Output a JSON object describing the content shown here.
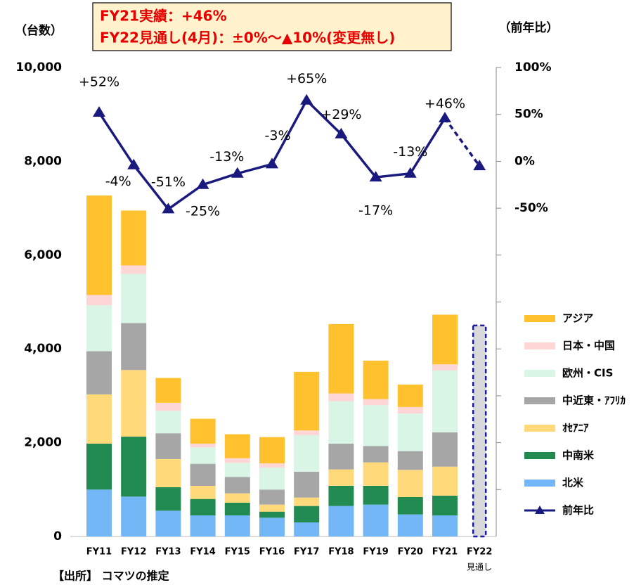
{
  "chart_data": {
    "type": "bar_line",
    "annotation": [
      "FY21実績：+46%",
      "FY22見通し(4月)：±0%～▲10%(変更無し)"
    ],
    "y_label": "（台数）",
    "y2_label": "（前年比）",
    "source": "【出所】 コマツの推定",
    "forecast_note": "見通し",
    "categories": [
      "FY11",
      "FY12",
      "FY13",
      "FY14",
      "FY15",
      "FY16",
      "FY17",
      "FY18",
      "FY19",
      "FY20",
      "FY21",
      "FY22"
    ],
    "ylim": [
      0,
      10000
    ],
    "yticks": [
      0,
      {
        "value": 2000,
        "label": "2,000"
      },
      {
        "value": 4000,
        "label": "4,000"
      },
      {
        "value": 6000,
        "label": "6,000"
      },
      {
        "value": 8000,
        "label": "8,000"
      },
      {
        "value": 10000,
        "label": "10,000"
      }
    ],
    "y2lim": [
      -400,
      100
    ],
    "y2ticks": [
      {
        "value": -50,
        "label": "-50%"
      },
      {
        "value": 0,
        "label": "0%"
      },
      {
        "value": 50,
        "label": "50%"
      },
      {
        "value": 100,
        "label": "100%"
      }
    ],
    "y2_minor_ticks": [
      -350,
      -300,
      -250,
      -200,
      -150,
      -100
    ],
    "series": [
      {
        "name": "北米",
        "color": "#74b7f7",
        "values": [
          1000,
          850,
          550,
          450,
          450,
          400,
          300,
          650,
          680,
          470,
          450,
          null
        ]
      },
      {
        "name": "中南米",
        "color": "#218b52",
        "values": [
          980,
          1280,
          500,
          350,
          270,
          130,
          350,
          430,
          400,
          370,
          420,
          null
        ]
      },
      {
        "name": "ｵｾｱﾆｱ",
        "color": "#ffd97a",
        "values": [
          1050,
          1420,
          600,
          280,
          200,
          150,
          180,
          350,
          500,
          580,
          620,
          null
        ]
      },
      {
        "name": "中近東・ｱﾌﾘｶ",
        "color": "#a6a6a6",
        "values": [
          920,
          1000,
          550,
          470,
          350,
          320,
          550,
          550,
          350,
          400,
          730,
          null
        ]
      },
      {
        "name": "欧州・CIS",
        "color": "#d9f5e6",
        "values": [
          980,
          1050,
          480,
          350,
          300,
          470,
          780,
          900,
          870,
          800,
          1320,
          null
        ]
      },
      {
        "name": "日本・中国",
        "color": "#ffd6d6",
        "values": [
          220,
          180,
          170,
          80,
          100,
          90,
          100,
          170,
          130,
          140,
          130,
          null
        ]
      },
      {
        "name": "アジア",
        "color": "#ffc12e",
        "values": [
          2120,
          1170,
          530,
          530,
          510,
          560,
          1250,
          1480,
          820,
          480,
          1060,
          null
        ]
      },
      {
        "name": "前年比",
        "color": "#1a1a7e",
        "axis": "y2",
        "type": "line",
        "values": [
          52,
          -4,
          -51,
          -25,
          -13,
          -3,
          65,
          29,
          -17,
          -13,
          46,
          -5
        ],
        "value_labels": [
          "+52%",
          "-4%",
          "-51%",
          "-25%",
          "-13%",
          "-3%",
          "+65%",
          "+29%",
          "-17%",
          "-13%",
          "+46%",
          null
        ],
        "dashed_from": 10
      }
    ],
    "forecast_values": [
      null,
      null,
      null,
      null,
      null,
      null,
      null,
      null,
      null,
      null,
      null,
      4500
    ],
    "forecast_color": "#d9d9d9",
    "forecast_border": "#1a1a9e"
  }
}
